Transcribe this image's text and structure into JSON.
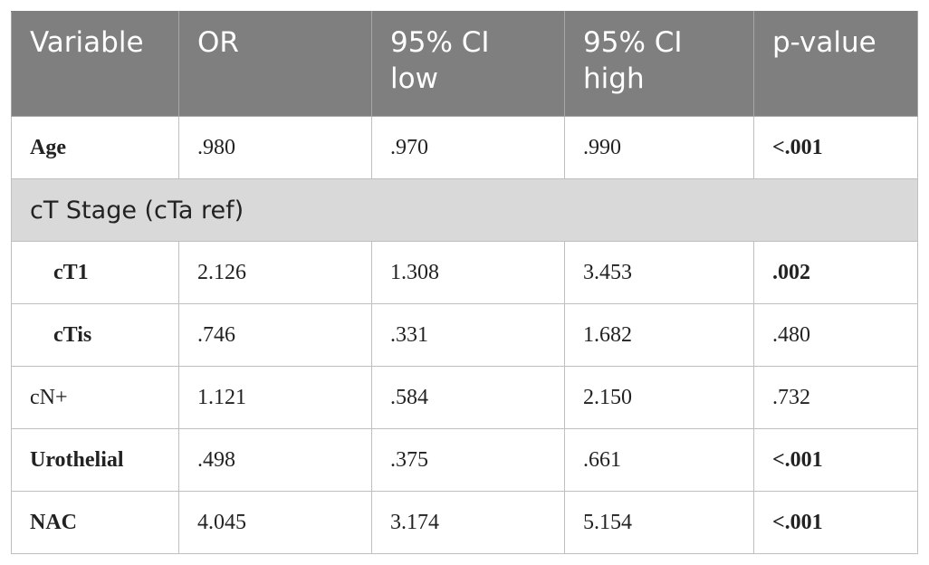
{
  "table": {
    "header": [
      "Variable",
      "OR",
      "95% CI low",
      "95% CI high",
      "p-value"
    ],
    "rows": [
      {
        "cells": [
          "Age",
          ".980",
          ".970",
          ".990",
          "<.001"
        ],
        "label_bold": true,
        "p_bold": true
      },
      {
        "section": "cT Stage (cTa ref)"
      },
      {
        "cells": [
          "cT1",
          "2.126",
          "1.308",
          "3.453",
          ".002"
        ],
        "label_bold": true,
        "indent": true,
        "p_bold": true
      },
      {
        "cells": [
          "cTis",
          ".746",
          ".331",
          "1.682",
          ".480"
        ],
        "label_bold": true,
        "indent": true,
        "p_bold": false
      },
      {
        "cells": [
          "cN+",
          "1.121",
          ".584",
          "2.150",
          ".732"
        ],
        "label_bold": false,
        "p_bold": false
      },
      {
        "cells": [
          "Urothelial",
          ".498",
          ".375",
          ".661",
          "<.001"
        ],
        "label_bold": true,
        "p_bold": true
      },
      {
        "cells": [
          "NAC",
          "4.045",
          "3.174",
          "5.154",
          "<.001"
        ],
        "label_bold": true,
        "p_bold": true
      }
    ]
  }
}
